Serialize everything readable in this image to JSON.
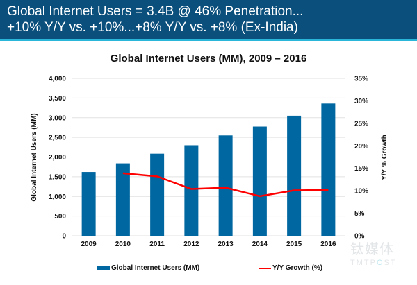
{
  "header": {
    "line1": "Global Internet Users = 3.4B @ 46% Penetration...",
    "line2": "+10% Y/Y vs. +10%...+8% Y/Y vs. +8% (Ex-India)"
  },
  "watermark": {
    "cn": "钛媒体",
    "en_pre": "TMTP",
    "en_o": "O",
    "en_post": "ST"
  },
  "colors": {
    "header_bg": "#0b4f7c",
    "accent_line": "#29b6d8",
    "bar": "#0067a0",
    "line": "#ff0000"
  },
  "chart_data": {
    "type": "bar",
    "title": "Global Internet Users (MM), 2009 – 2016",
    "xlabel": "",
    "ylabel": "Global Internet Users (MM)",
    "y2label": "Y/Y % Growth",
    "categories": [
      "2009",
      "2010",
      "2011",
      "2012",
      "2013",
      "2014",
      "2015",
      "2016"
    ],
    "ylim": [
      0,
      4000
    ],
    "yticks": [
      0,
      500,
      1000,
      1500,
      2000,
      2500,
      3000,
      3500,
      4000
    ],
    "ytick_labels": [
      "0",
      "500",
      "1,000",
      "1,500",
      "2,000",
      "2,500",
      "3,000",
      "3,500",
      "4,000"
    ],
    "y2lim": [
      0,
      35
    ],
    "y2ticks": [
      0,
      5,
      10,
      15,
      20,
      25,
      30,
      35
    ],
    "y2tick_labels": [
      "0%",
      "5%",
      "10%",
      "15%",
      "20%",
      "25%",
      "30%",
      "35%"
    ],
    "grid": true,
    "legend_position": "bottom",
    "series": [
      {
        "name": "Global Internet Users (MM)",
        "type": "bar",
        "axis": "left",
        "values": [
          1620,
          1840,
          2085,
          2300,
          2550,
          2775,
          3050,
          3360
        ]
      },
      {
        "name": "Y/Y Growth (%)",
        "type": "line",
        "axis": "right",
        "values": [
          null,
          13.9,
          13.2,
          10.4,
          10.7,
          8.8,
          10.1,
          10.2
        ]
      }
    ]
  }
}
